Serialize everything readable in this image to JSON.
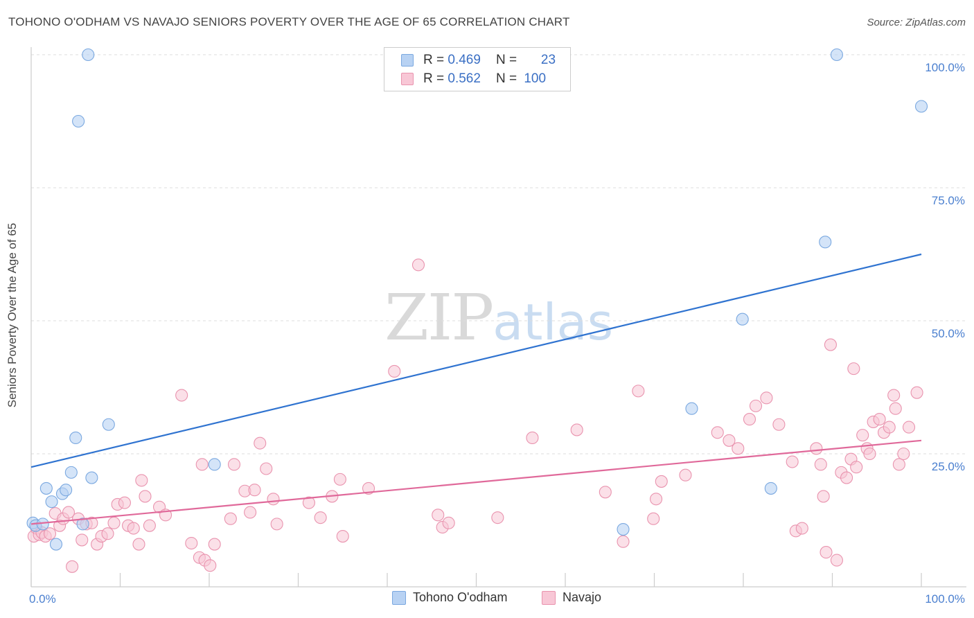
{
  "header": {
    "title": "TOHONO O'ODHAM VS NAVAJO SENIORS POVERTY OVER THE AGE OF 65 CORRELATION CHART",
    "source": "Source: ZipAtlas.com"
  },
  "watermark": {
    "zip": "ZIP",
    "atlas": "atlas"
  },
  "legend": {
    "rows": [
      {
        "r_label": "R =",
        "r_value": "0.469",
        "n_label": "N =",
        "n_value": "23",
        "color": "#a9c8f0"
      },
      {
        "r_label": "R =",
        "r_value": "0.562",
        "n_label": "N =",
        "n_value": "100",
        "color": "#f6b8cb"
      }
    ]
  },
  "colors": {
    "tohono_fill": "#b8d2f3",
    "tohono_stroke": "#7aa8e0",
    "tohono_line": "#2f73d0",
    "navajo_fill": "#f8c7d6",
    "navajo_stroke": "#e993ae",
    "navajo_line": "#e0699a",
    "grid": "#dddddd"
  },
  "chart_data": {
    "type": "scatter",
    "title": "TOHONO O'ODHAM VS NAVAJO SENIORS POVERTY OVER THE AGE OF 65 CORRELATION CHART",
    "xlabel": "",
    "ylabel": "Seniors Poverty Over the Age of 65",
    "xlim": [
      0,
      100
    ],
    "ylim": [
      0,
      105
    ],
    "x_tick_labels": [
      "0.0%",
      "100.0%"
    ],
    "y_ticks": [
      25,
      50,
      75,
      100
    ],
    "y_tick_labels": [
      "25.0%",
      "50.0%",
      "75.0%",
      "100.0%"
    ],
    "grid": true,
    "legend_position": "top-center",
    "series": [
      {
        "name": "Tohono O'odham",
        "color": "#a9c8f0",
        "trend": {
          "x": [
            0,
            100
          ],
          "y": [
            22.5,
            62.5
          ]
        },
        "points": [
          [
            0.2,
            12.0
          ],
          [
            0.5,
            11.5
          ],
          [
            1.3,
            11.8
          ],
          [
            1.7,
            18.5
          ],
          [
            2.3,
            16.0
          ],
          [
            2.8,
            8.0
          ],
          [
            3.5,
            17.5
          ],
          [
            3.9,
            18.2
          ],
          [
            4.5,
            21.5
          ],
          [
            5.0,
            28.0
          ],
          [
            5.3,
            87.5
          ],
          [
            5.8,
            11.8
          ],
          [
            6.4,
            100.0
          ],
          [
            6.8,
            20.5
          ],
          [
            8.7,
            30.5
          ],
          [
            20.6,
            23.0
          ],
          [
            66.5,
            10.8
          ],
          [
            74.2,
            33.5
          ],
          [
            79.9,
            50.3
          ],
          [
            83.1,
            18.5
          ],
          [
            89.2,
            64.8
          ],
          [
            90.5,
            100.0
          ],
          [
            100.0,
            90.3
          ]
        ]
      },
      {
        "name": "Navajo",
        "color": "#f6b8cb",
        "trend": {
          "x": [
            0,
            100
          ],
          "y": [
            11.8,
            27.5
          ]
        },
        "points": [
          [
            0.3,
            9.5
          ],
          [
            0.6,
            11.0
          ],
          [
            0.9,
            9.8
          ],
          [
            1.2,
            10.2
          ],
          [
            1.6,
            9.5
          ],
          [
            2.1,
            10.0
          ],
          [
            2.7,
            13.8
          ],
          [
            3.2,
            11.5
          ],
          [
            3.6,
            12.8
          ],
          [
            4.2,
            14.0
          ],
          [
            4.6,
            3.8
          ],
          [
            5.3,
            12.8
          ],
          [
            5.7,
            8.8
          ],
          [
            6.2,
            11.8
          ],
          [
            6.8,
            12.0
          ],
          [
            7.4,
            8.0
          ],
          [
            7.9,
            9.5
          ],
          [
            8.6,
            10.0
          ],
          [
            9.3,
            12.0
          ],
          [
            9.7,
            15.5
          ],
          [
            10.5,
            15.8
          ],
          [
            10.9,
            11.5
          ],
          [
            11.5,
            11.0
          ],
          [
            12.1,
            8.0
          ],
          [
            12.4,
            20.0
          ],
          [
            12.8,
            17.0
          ],
          [
            13.3,
            11.5
          ],
          [
            14.4,
            15.0
          ],
          [
            15.1,
            13.5
          ],
          [
            16.9,
            36.0
          ],
          [
            18.0,
            8.2
          ],
          [
            18.9,
            5.5
          ],
          [
            19.2,
            23.0
          ],
          [
            19.5,
            5.0
          ],
          [
            20.1,
            4.0
          ],
          [
            20.6,
            8.0
          ],
          [
            22.4,
            12.8
          ],
          [
            22.8,
            23.0
          ],
          [
            24.0,
            18.0
          ],
          [
            24.6,
            14.0
          ],
          [
            25.1,
            18.2
          ],
          [
            25.7,
            27.0
          ],
          [
            26.4,
            22.2
          ],
          [
            27.2,
            16.5
          ],
          [
            27.6,
            11.8
          ],
          [
            31.2,
            15.8
          ],
          [
            32.5,
            13.0
          ],
          [
            33.8,
            17.0
          ],
          [
            34.7,
            20.2
          ],
          [
            35.0,
            9.5
          ],
          [
            37.9,
            18.5
          ],
          [
            40.8,
            40.5
          ],
          [
            43.5,
            60.5
          ],
          [
            45.7,
            13.5
          ],
          [
            46.2,
            11.2
          ],
          [
            46.9,
            12.0
          ],
          [
            52.4,
            13.0
          ],
          [
            56.3,
            28.0
          ],
          [
            61.3,
            29.5
          ],
          [
            64.5,
            17.8
          ],
          [
            66.5,
            8.5
          ],
          [
            68.2,
            36.8
          ],
          [
            69.9,
            12.8
          ],
          [
            70.2,
            16.5
          ],
          [
            70.8,
            19.8
          ],
          [
            73.5,
            21.0
          ],
          [
            77.1,
            29.0
          ],
          [
            78.4,
            27.5
          ],
          [
            79.4,
            26.0
          ],
          [
            80.7,
            31.5
          ],
          [
            81.4,
            34.0
          ],
          [
            82.6,
            35.5
          ],
          [
            84.0,
            30.5
          ],
          [
            85.5,
            23.5
          ],
          [
            85.9,
            10.5
          ],
          [
            86.6,
            11.0
          ],
          [
            88.2,
            26.0
          ],
          [
            88.7,
            23.0
          ],
          [
            89.0,
            17.0
          ],
          [
            89.3,
            6.5
          ],
          [
            89.8,
            45.5
          ],
          [
            90.5,
            5.0
          ],
          [
            91.0,
            21.5
          ],
          [
            91.6,
            20.5
          ],
          [
            92.1,
            24.0
          ],
          [
            92.4,
            41.0
          ],
          [
            92.7,
            22.5
          ],
          [
            93.4,
            28.5
          ],
          [
            93.9,
            26.0
          ],
          [
            94.2,
            25.0
          ],
          [
            94.6,
            31.0
          ],
          [
            95.3,
            31.5
          ],
          [
            95.8,
            29.0
          ],
          [
            96.4,
            30.0
          ],
          [
            96.9,
            36.0
          ],
          [
            97.1,
            33.5
          ],
          [
            97.5,
            23.0
          ],
          [
            98.0,
            25.0
          ],
          [
            98.6,
            30.0
          ],
          [
            99.5,
            36.5
          ]
        ]
      }
    ]
  }
}
